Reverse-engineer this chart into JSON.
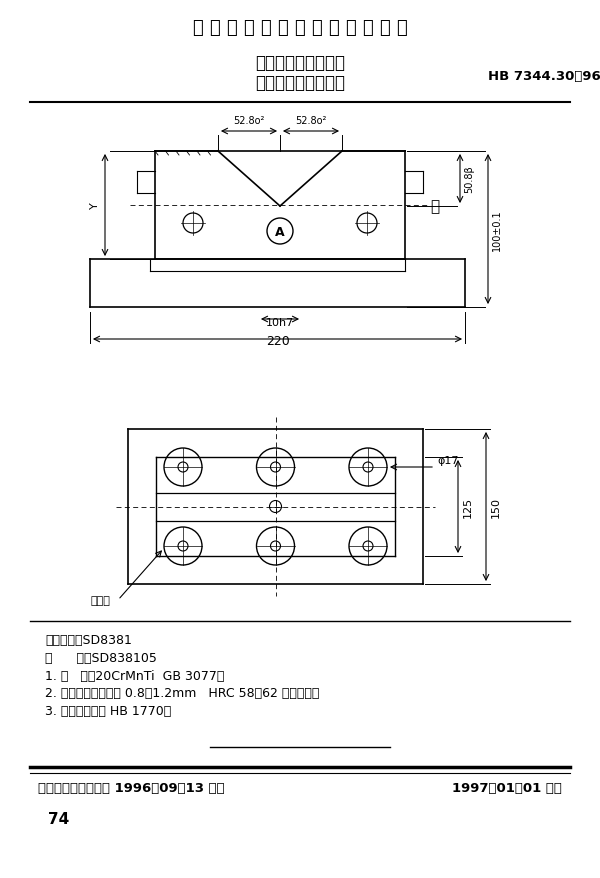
{
  "title_main": "中 华 人 民 共 和 国 航 空 工 业 标 准",
  "title_sub1": "数控机床用夹具元件",
  "title_sub2": "大型钳式双向定位座",
  "standard_no": "HB 7344.30－96",
  "classification_label": "分类代号：",
  "classification_value": "SD8381",
  "mark_label": "标      记：",
  "mark_value": "SD838105",
  "note1": "1. 材   料：20CrMnTi  GB 3077。",
  "note2": "2. 热处理：渗碳深度 0.8～1.2mm   HRC 58～62 人工时效。",
  "note3": "3. 技术条件：按 HB 1770。",
  "footer_left": "中国航空工业总公司 1996－09－13 发布",
  "footer_right": "1997－01－01 实施",
  "page_number": "74",
  "bg_color": "#ffffff",
  "text_color": "#000000"
}
